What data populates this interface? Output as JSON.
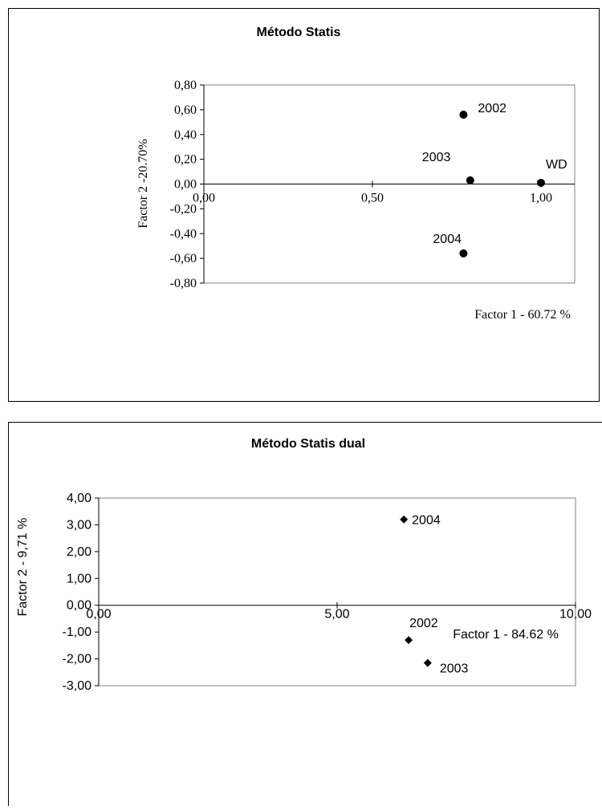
{
  "chart_data": [
    {
      "type": "scatter",
      "title": "Método Statis",
      "xlabel": "Factor 1 - 60.72 %",
      "ylabel": "Factor 2 -20.70%",
      "xlim": [
        0,
        1.1
      ],
      "ylim": [
        -0.8,
        0.8
      ],
      "x_ticks": [
        0,
        0.5,
        1.0
      ],
      "x_tick_labels": [
        "0,00",
        "0,50",
        "1,00"
      ],
      "y_ticks": [
        0.8,
        0.6,
        0.4,
        0.2,
        0.0,
        -0.2,
        -0.4,
        -0.6,
        -0.8
      ],
      "y_tick_labels": [
        "0,80",
        "0,60",
        "0,40",
        "0,20",
        "0,00",
        "-0,20",
        "-0,40",
        "-0,60",
        "-0,80"
      ],
      "marker": "circle",
      "grid": false,
      "points": [
        {
          "label": "2002",
          "x": 0.77,
          "y": 0.56
        },
        {
          "label": "2003",
          "x": 0.79,
          "y": 0.03
        },
        {
          "label": "WD",
          "x": 1.0,
          "y": 0.01
        },
        {
          "label": "2004",
          "x": 0.77,
          "y": -0.56
        }
      ]
    },
    {
      "type": "scatter",
      "title": "Método Statis dual",
      "xlabel": "Factor 1 - 84.62 %",
      "ylabel": "Factor 2 - 9,71 %",
      "xlim": [
        0,
        10
      ],
      "ylim": [
        -3,
        4
      ],
      "x_ticks": [
        0,
        5,
        10
      ],
      "x_tick_labels": [
        "0,00",
        "5,00",
        "10,00"
      ],
      "y_ticks": [
        4,
        3,
        2,
        1,
        0,
        -1,
        -2,
        -3
      ],
      "y_tick_labels": [
        "4,00",
        "3,00",
        "2,00",
        "1,00",
        "0,00",
        "-1,00",
        "-2,00",
        "-3,00"
      ],
      "marker": "diamond",
      "grid": false,
      "points": [
        {
          "label": "2004",
          "x": 6.4,
          "y": 3.2
        },
        {
          "label": "2002",
          "x": 6.5,
          "y": -1.3
        },
        {
          "label": "2003",
          "x": 6.9,
          "y": -2.15
        }
      ]
    }
  ]
}
